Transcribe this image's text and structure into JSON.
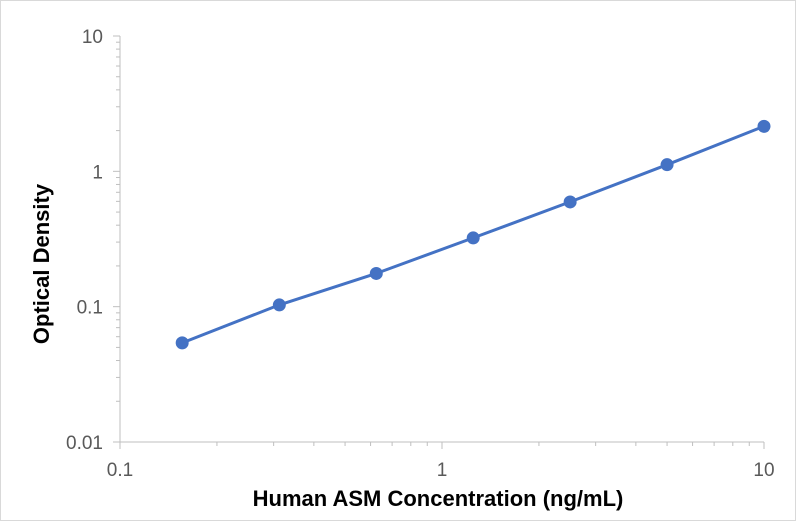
{
  "chart_data": {
    "type": "line",
    "title": "",
    "xlabel": "Human ASM Concentration (ng/mL)",
    "ylabel": "Optical Density",
    "xscale": "log",
    "yscale": "log",
    "xlim": [
      0.1,
      10
    ],
    "ylim": [
      0.01,
      10
    ],
    "x_ticks": [
      {
        "value": 0.1,
        "label": "0.1"
      },
      {
        "value": 1,
        "label": "1"
      },
      {
        "value": 10,
        "label": "10"
      }
    ],
    "y_ticks": [
      {
        "value": 0.01,
        "label": "0.01"
      },
      {
        "value": 0.1,
        "label": "0.1"
      },
      {
        "value": 1,
        "label": "1"
      },
      {
        "value": 10,
        "label": "10"
      }
    ],
    "grid": false,
    "legend": "none",
    "series": [
      {
        "color": "#4472c4",
        "marker": "circle",
        "x": [
          0.156,
          0.3125,
          0.625,
          1.25,
          2.5,
          5,
          10
        ],
        "y": [
          0.054,
          0.103,
          0.176,
          0.322,
          0.594,
          1.12,
          2.15
        ]
      }
    ]
  }
}
